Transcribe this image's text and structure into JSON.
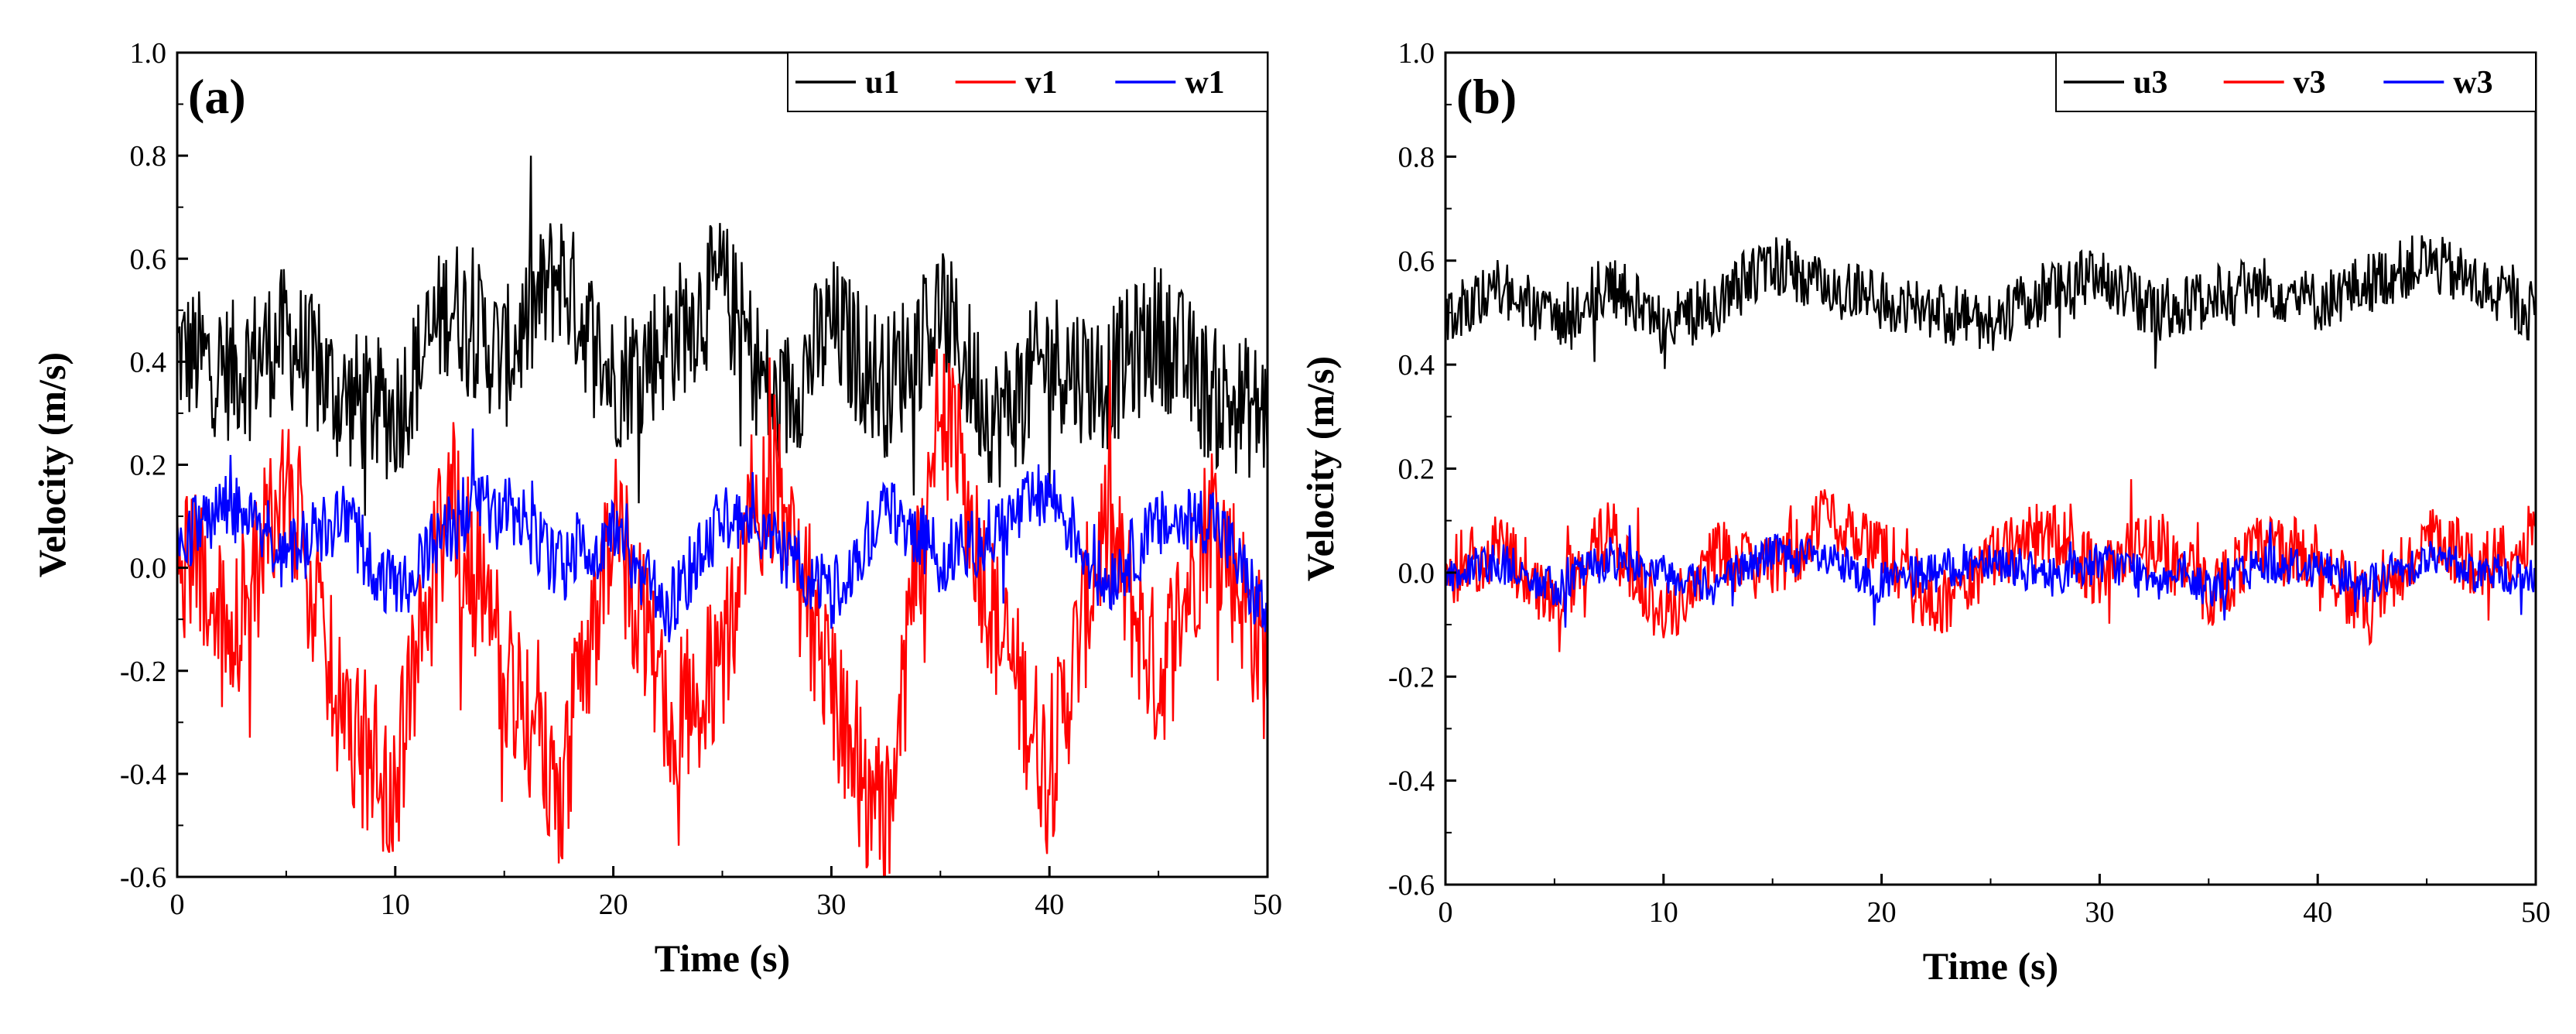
{
  "chart_data": [
    {
      "type": "line",
      "panel_label": "(a)",
      "xlabel": "Time (s)",
      "ylabel": "Velocity (m/s)",
      "xlim": [
        0,
        50
      ],
      "ylim": [
        -0.6,
        1.0
      ],
      "xticks": [
        "0",
        "10",
        "20",
        "30",
        "40",
        "50"
      ],
      "yticks": [
        "-0.6",
        "-0.4",
        "-0.2",
        "0.0",
        "0.2",
        "0.4",
        "0.6",
        "0.8",
        "1.0"
      ],
      "legend_position": "top-right",
      "x": [
        0,
        2.5,
        5,
        7.5,
        10,
        12.5,
        15,
        17.5,
        20,
        22.5,
        25,
        27.5,
        30,
        32.5,
        35,
        37.5,
        40,
        42.5,
        45,
        47.5,
        50
      ],
      "series": [
        {
          "name": "u1",
          "color": "#000000",
          "values": [
            0.42,
            0.38,
            0.45,
            0.33,
            0.3,
            0.52,
            0.4,
            0.58,
            0.36,
            0.44,
            0.55,
            0.3,
            0.47,
            0.35,
            0.5,
            0.28,
            0.41,
            0.36,
            0.46,
            0.33,
            0.3
          ]
        },
        {
          "name": "v1",
          "color": "#ff0000",
          "values": [
            0.05,
            -0.15,
            0.2,
            -0.3,
            -0.42,
            0.15,
            -0.2,
            -0.45,
            0.1,
            -0.3,
            -0.18,
            0.2,
            -0.25,
            -0.52,
            0.35,
            -0.1,
            -0.4,
            0.08,
            -0.22,
            0.12,
            -0.2
          ]
        },
        {
          "name": "w1",
          "color": "#0000ff",
          "values": [
            0.05,
            0.12,
            0.02,
            0.1,
            -0.05,
            0.08,
            0.13,
            0.0,
            0.06,
            -0.08,
            0.1,
            0.04,
            -0.05,
            0.12,
            0.02,
            0.07,
            0.15,
            -0.03,
            0.08,
            0.1,
            -0.1
          ]
        }
      ]
    },
    {
      "type": "line",
      "panel_label": "(b)",
      "xlabel": "Time (s)",
      "ylabel": "Velocity (m/s)",
      "xlim": [
        0,
        50
      ],
      "ylim": [
        -0.6,
        1.0
      ],
      "xticks": [
        "0",
        "10",
        "20",
        "30",
        "40",
        "50"
      ],
      "yticks": [
        "-0.6",
        "-0.4",
        "-0.2",
        "0.0",
        "0.2",
        "0.4",
        "0.6",
        "0.8",
        "1.0"
      ],
      "legend_position": "top-right",
      "x": [
        0,
        2.5,
        5,
        7.5,
        10,
        12.5,
        15,
        17.5,
        20,
        22.5,
        25,
        27.5,
        30,
        32.5,
        35,
        37.5,
        40,
        42.5,
        45,
        47.5,
        50
      ],
      "series": [
        {
          "name": "u3",
          "color": "#000000",
          "values": [
            0.5,
            0.55,
            0.48,
            0.56,
            0.47,
            0.52,
            0.6,
            0.55,
            0.52,
            0.5,
            0.48,
            0.54,
            0.57,
            0.5,
            0.53,
            0.55,
            0.52,
            0.56,
            0.6,
            0.55,
            0.5
          ]
        },
        {
          "name": "v3",
          "color": "#ff0000",
          "values": [
            0.0,
            0.05,
            -0.05,
            0.08,
            -0.08,
            0.04,
            0.0,
            0.1,
            0.05,
            -0.06,
            0.02,
            0.08,
            0.0,
            0.06,
            -0.04,
            0.05,
            0.03,
            -0.08,
            0.06,
            0.02,
            0.05
          ]
        },
        {
          "name": "w3",
          "color": "#0000ff",
          "values": [
            0.0,
            0.02,
            -0.03,
            0.03,
            0.0,
            -0.02,
            0.04,
            0.02,
            -0.02,
            0.0,
            0.03,
            -0.01,
            0.02,
            0.0,
            -0.03,
            0.02,
            0.01,
            -0.02,
            0.03,
            0.0,
            -0.01
          ]
        }
      ]
    }
  ]
}
